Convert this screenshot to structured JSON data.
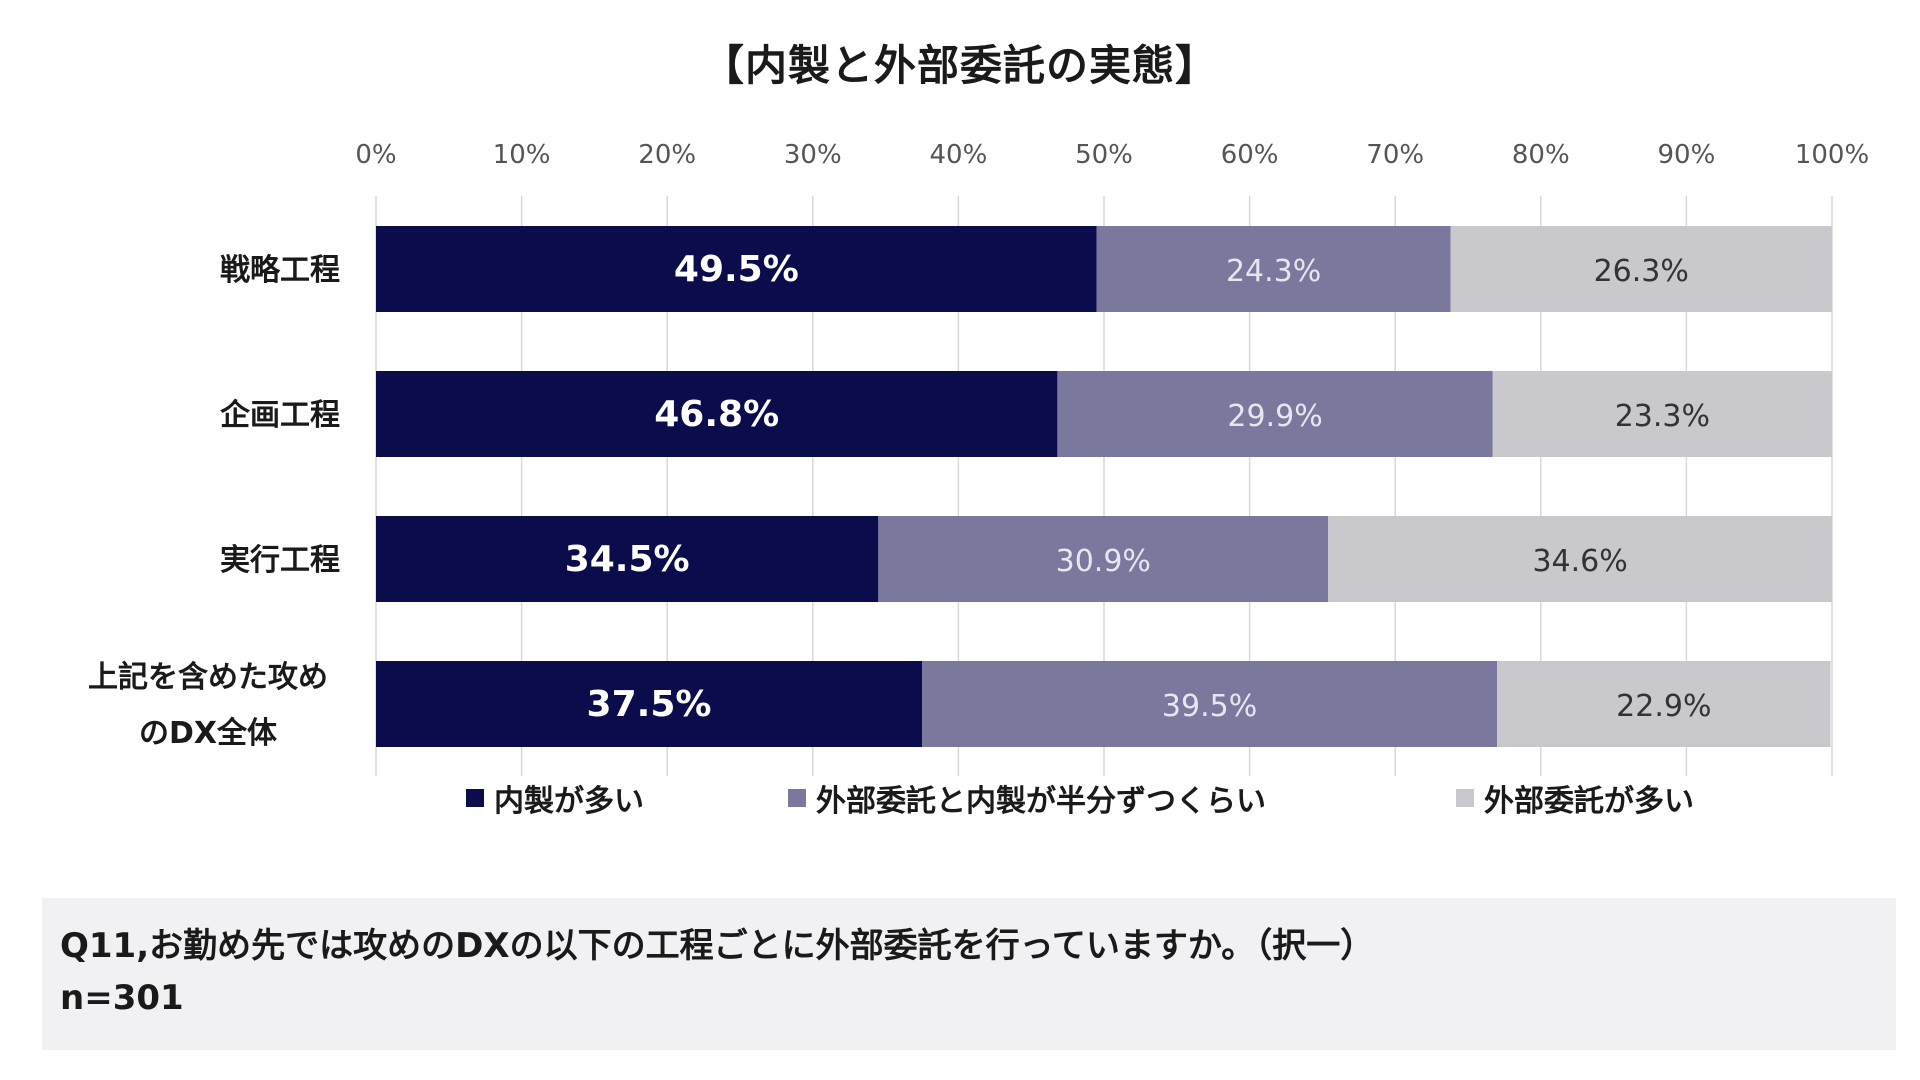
{
  "chart_data": {
    "type": "bar",
    "orientation": "horizontal",
    "stacked": true,
    "title": "【内製と外部委託の実態】",
    "categories": [
      "戦略工程",
      "企画工程",
      "実行工程",
      "上記を含めた攻めのDX全体"
    ],
    "category_lines": [
      [
        "戦略工程"
      ],
      [
        "企画工程"
      ],
      [
        "実行工程"
      ],
      [
        "上記を含めた攻め",
        "のDX全体"
      ]
    ],
    "series": [
      {
        "name": "内製が多い",
        "color": "#0b0c4b",
        "values": [
          49.5,
          46.8,
          34.5,
          37.5
        ],
        "labels": [
          "49.5%",
          "46.8%",
          "34.5%",
          "37.5%"
        ]
      },
      {
        "name": "外部委託と内製が半分ずつくらい",
        "color": "#7a789d",
        "values": [
          24.3,
          29.9,
          30.9,
          39.5
        ],
        "labels": [
          "24.3%",
          "29.9%",
          "30.9%",
          "39.5%"
        ]
      },
      {
        "name": "外部委託が多い",
        "color": "#c8c8cd",
        "values": [
          26.3,
          23.3,
          34.6,
          22.9
        ],
        "labels": [
          "26.3%",
          "23.3%",
          "34.6%",
          "22.9%"
        ]
      }
    ],
    "xlim": [
      0,
      100
    ],
    "x_ticks": [
      "0%",
      "10%",
      "20%",
      "30%",
      "40%",
      "50%",
      "60%",
      "70%",
      "80%",
      "90%",
      "100%"
    ],
    "grid": true,
    "legend_position": "bottom"
  },
  "note": {
    "question": "Q11,お勤め先では攻めのDXの以下の工程ごとに外部委託を行っていますか。（択一）",
    "sample": "n=301"
  }
}
